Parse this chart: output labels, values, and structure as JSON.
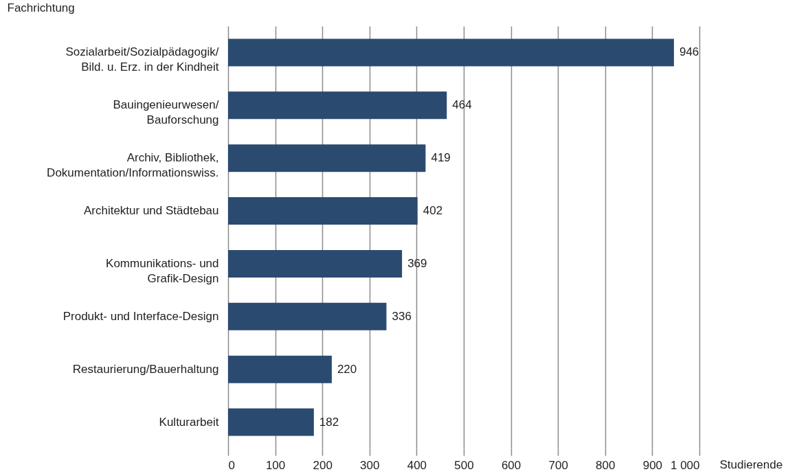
{
  "chart_data": {
    "type": "bar",
    "orientation": "horizontal",
    "ylabel": "Fachrichtung",
    "xlabel": "Studierende",
    "categories": [
      "Sozialarbeit/Sozialpädagogik/\nBild. u. Erz. in der Kindheit",
      "Bauingenieurwesen/\nBauforschung",
      "Archiv, Bibliothek,\nDokumentation/Informationswiss.",
      "Architektur und Städtebau",
      "Kommunikations- und\nGrafik-Design",
      "Produkt- und Interface-Design",
      "Restaurierung/Bauerhaltung",
      "Kulturarbeit"
    ],
    "values": [
      946,
      464,
      419,
      402,
      369,
      336,
      220,
      182
    ],
    "color": "#2b4a70",
    "xlim": [
      0,
      1000
    ],
    "xticks": [
      0,
      100,
      200,
      300,
      400,
      500,
      600,
      700,
      800,
      900,
      {
        "value": 1000,
        "label": "1 000"
      }
    ],
    "grid": "x",
    "data_labels": true
  }
}
